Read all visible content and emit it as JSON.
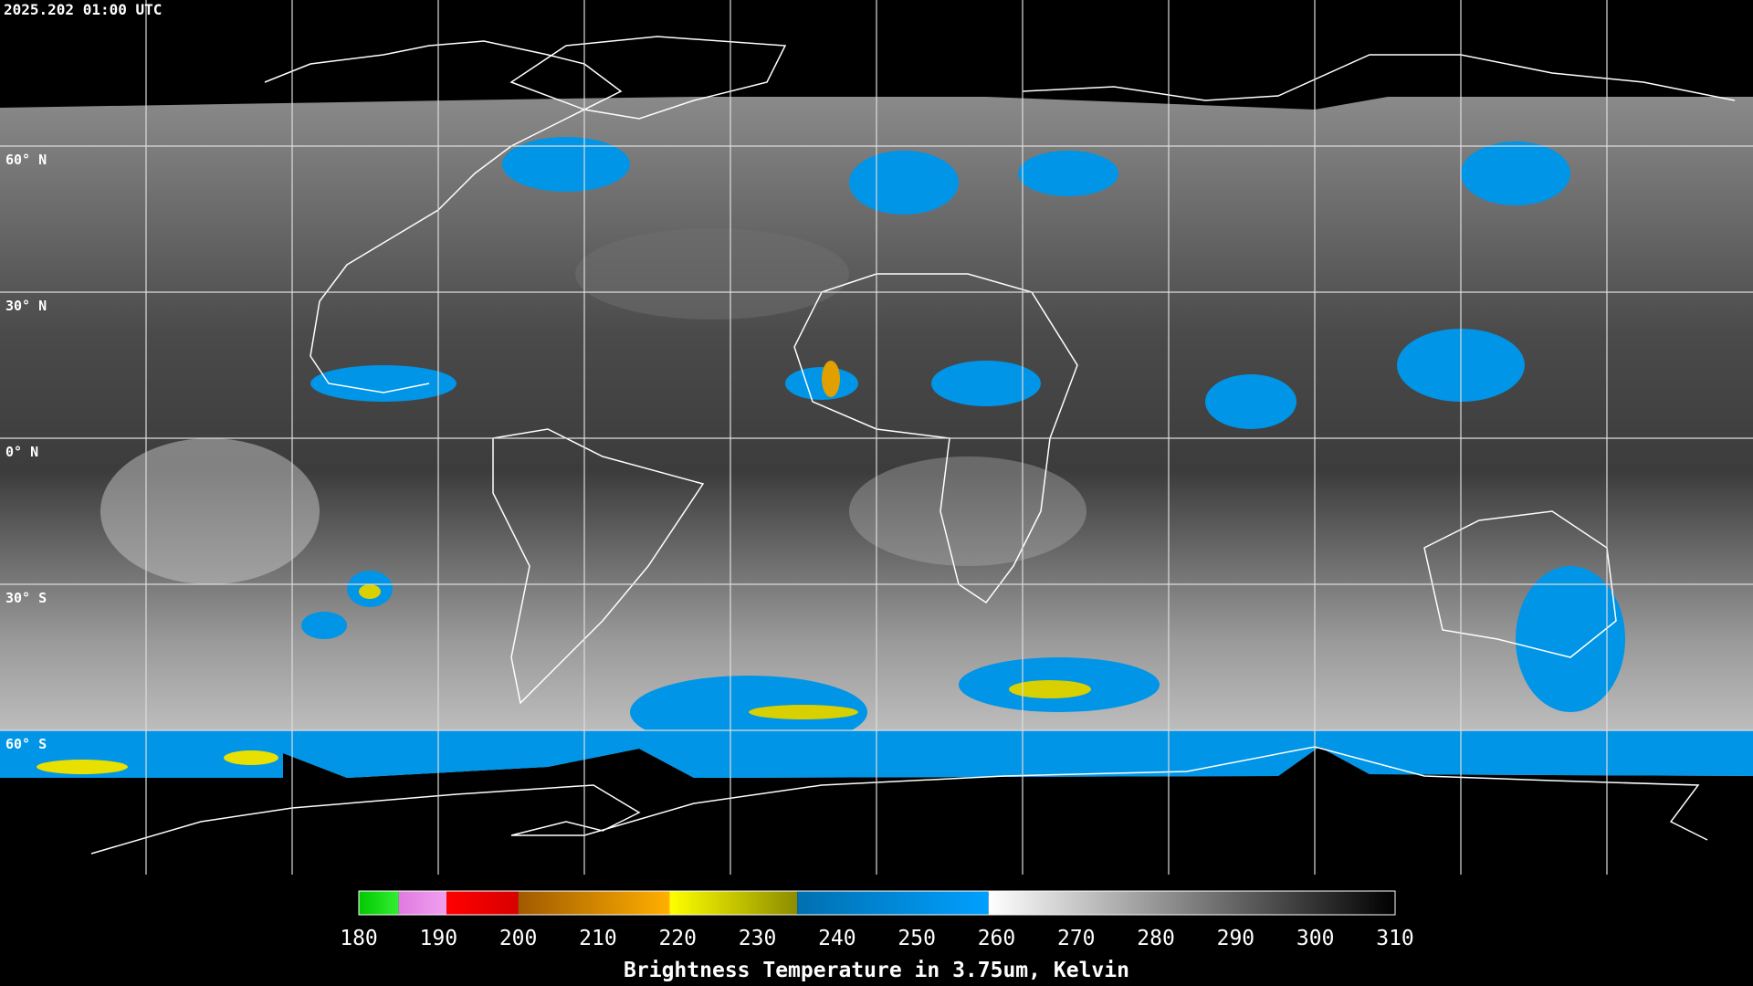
{
  "header": {
    "timestamp": "2025.202 01:00 UTC"
  },
  "map": {
    "lat_labels": [
      "60° N",
      "30° N",
      "0° N",
      "30° S",
      "60° S"
    ]
  },
  "colorbar": {
    "title": "Brightness Temperature in 3.75um, Kelvin",
    "lim": [
      180,
      310
    ],
    "ticks": [
      180,
      190,
      200,
      210,
      220,
      230,
      240,
      250,
      260,
      270,
      280,
      290,
      300,
      310
    ],
    "segments": [
      {
        "from": 180,
        "to": 185,
        "colors": [
          "#00c800",
          "#33ee33"
        ]
      },
      {
        "from": 185,
        "to": 191,
        "colors": [
          "#e07ae0",
          "#f0a0f0"
        ]
      },
      {
        "from": 191,
        "to": 200,
        "colors": [
          "#ff0000",
          "#d80000"
        ]
      },
      {
        "from": 200,
        "to": 219,
        "colors": [
          "#a05a00",
          "#ffb000"
        ]
      },
      {
        "from": 219,
        "to": 235,
        "colors": [
          "#ffff00",
          "#8c8c00"
        ]
      },
      {
        "from": 235,
        "to": 259,
        "colors": [
          "#0070b0",
          "#00a0ff"
        ]
      },
      {
        "from": 259,
        "to": 310,
        "colors": [
          "#ffffff",
          "#000000"
        ]
      }
    ]
  }
}
